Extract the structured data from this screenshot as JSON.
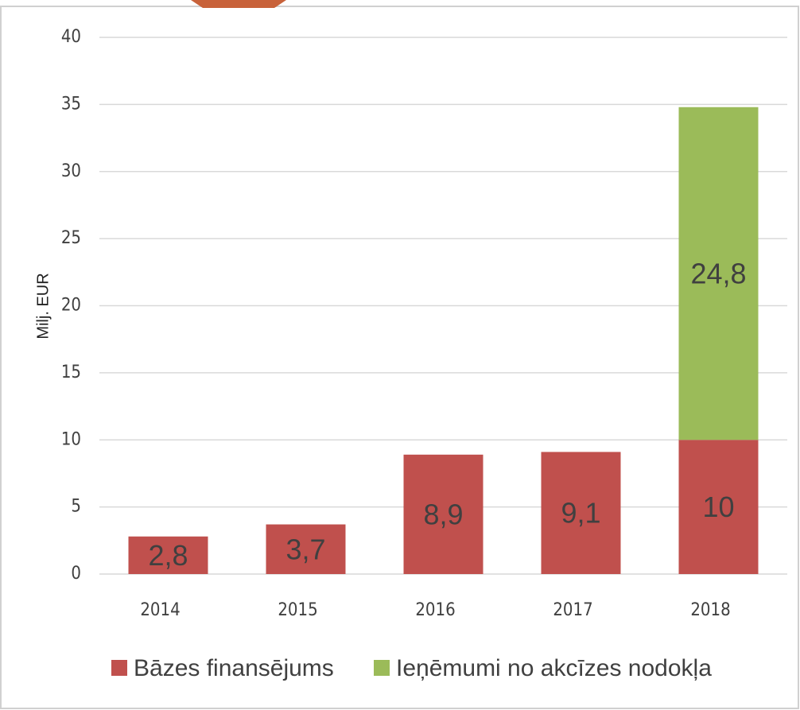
{
  "chart_data": {
    "type": "bar",
    "stacked": true,
    "y_label": "Milj. EUR",
    "categories": [
      "2014",
      "2015",
      "2016",
      "2017",
      "2018"
    ],
    "series": [
      {
        "name": "Bāzes finansējums",
        "color": "#c0504d",
        "values": [
          2.8,
          3.7,
          8.9,
          9.1,
          10
        ],
        "value_labels": [
          "2,8",
          "3,7",
          "8,9",
          "9,1",
          "10"
        ]
      },
      {
        "name": "Ieņēmumi no akcīzes nodokļa",
        "color": "#9bbb59",
        "values": [
          null,
          null,
          null,
          null,
          24.8
        ],
        "value_labels": [
          null,
          null,
          null,
          null,
          "24,8"
        ]
      }
    ],
    "ylim": [
      0,
      40
    ],
    "yticks": [
      0,
      5,
      10,
      15,
      20,
      25,
      30,
      35,
      40
    ],
    "grid": true
  }
}
